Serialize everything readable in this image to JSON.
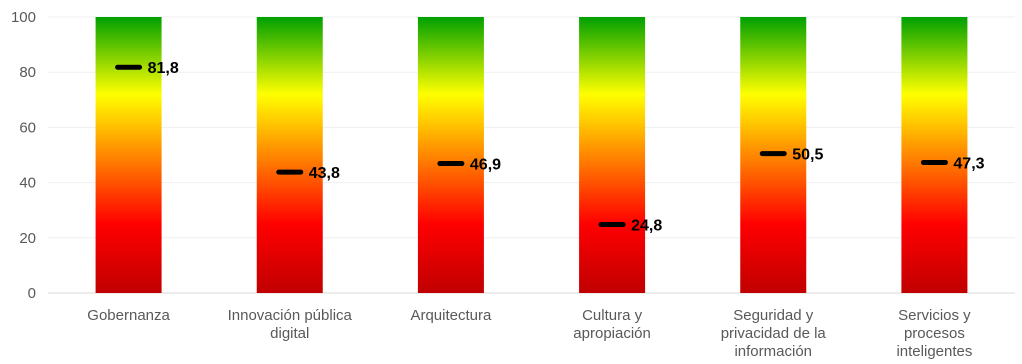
{
  "chart_data": {
    "type": "bar",
    "categories": [
      [
        "Gobernanza"
      ],
      [
        "Innovación pública",
        "digital"
      ],
      [
        "Arquitectura"
      ],
      [
        "Cultura y",
        "apropiación"
      ],
      [
        "Seguridad y",
        "privacidad de la",
        "información"
      ],
      [
        "Servicios y",
        "procesos",
        "inteligentes"
      ]
    ],
    "series": [
      {
        "values": [
          81.8,
          43.8,
          46.9,
          24.8,
          50.5,
          47.3
        ]
      }
    ],
    "value_labels": [
      "81,8",
      "43,8",
      "46,9",
      "24,8",
      "50,5",
      "47,3"
    ],
    "ylim": [
      0,
      100
    ],
    "yticks": [
      0,
      20,
      40,
      60,
      80,
      100
    ],
    "grid": true,
    "legend": "none",
    "bar_gradient": [
      "#00A000",
      "#FFFF00",
      "#FF0000",
      "#C00000"
    ],
    "marker_color": "#000000"
  }
}
